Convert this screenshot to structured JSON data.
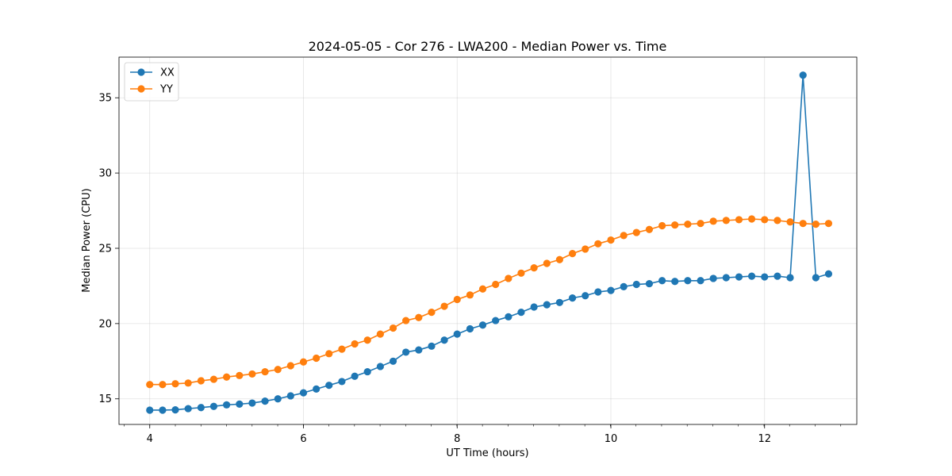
{
  "chart_data": {
    "type": "line",
    "title": "2024-05-05 - Cor 276 - LWA200 - Median Power vs. Time",
    "xlabel": "UT Time (hours)",
    "ylabel": "Median Power (CPU)",
    "xlim": [
      3.6,
      13.2
    ],
    "ylim": [
      13.3,
      37.7
    ],
    "xticks": [
      4,
      6,
      8,
      10,
      12
    ],
    "yticks": [
      15,
      20,
      25,
      30,
      35
    ],
    "xminor_step": 0.333,
    "grid": true,
    "legend_position": "top-left",
    "x": [
      4.0,
      4.167,
      4.333,
      4.5,
      4.667,
      4.833,
      5.0,
      5.167,
      5.333,
      5.5,
      5.667,
      5.833,
      6.0,
      6.167,
      6.333,
      6.5,
      6.667,
      6.833,
      7.0,
      7.167,
      7.333,
      7.5,
      7.667,
      7.833,
      8.0,
      8.167,
      8.333,
      8.5,
      8.667,
      8.833,
      9.0,
      9.167,
      9.333,
      9.5,
      9.667,
      9.833,
      10.0,
      10.167,
      10.333,
      10.5,
      10.667,
      10.833,
      11.0,
      11.167,
      11.333,
      11.5,
      11.667,
      11.833,
      12.0,
      12.167,
      12.333,
      12.5,
      12.667,
      12.833
    ],
    "series": [
      {
        "name": "XX",
        "color": "#1f77b4",
        "values": [
          14.25,
          14.25,
          14.27,
          14.35,
          14.42,
          14.5,
          14.6,
          14.65,
          14.72,
          14.85,
          15.0,
          15.2,
          15.4,
          15.65,
          15.9,
          16.15,
          16.5,
          16.8,
          17.15,
          17.5,
          18.1,
          18.25,
          18.5,
          18.9,
          19.3,
          19.65,
          19.9,
          20.2,
          20.45,
          20.75,
          21.1,
          21.25,
          21.4,
          21.7,
          21.85,
          22.1,
          22.2,
          22.45,
          22.6,
          22.65,
          22.85,
          22.8,
          22.85,
          22.85,
          23.0,
          23.05,
          23.1,
          23.15,
          23.1,
          23.15,
          23.05,
          36.5,
          23.05,
          23.3
        ]
      },
      {
        "name": "YY",
        "color": "#ff7f0e",
        "values": [
          15.95,
          15.95,
          16.0,
          16.05,
          16.2,
          16.3,
          16.45,
          16.55,
          16.65,
          16.8,
          16.95,
          17.2,
          17.45,
          17.7,
          18.0,
          18.3,
          18.65,
          18.9,
          19.3,
          19.7,
          20.2,
          20.4,
          20.75,
          21.15,
          21.6,
          21.9,
          22.3,
          22.6,
          23.0,
          23.35,
          23.7,
          24.0,
          24.25,
          24.65,
          24.95,
          25.3,
          25.55,
          25.85,
          26.05,
          26.25,
          26.5,
          26.55,
          26.6,
          26.65,
          26.8,
          26.85,
          26.9,
          26.95,
          26.9,
          26.85,
          26.75,
          26.65,
          26.6,
          26.65
        ]
      }
    ]
  }
}
